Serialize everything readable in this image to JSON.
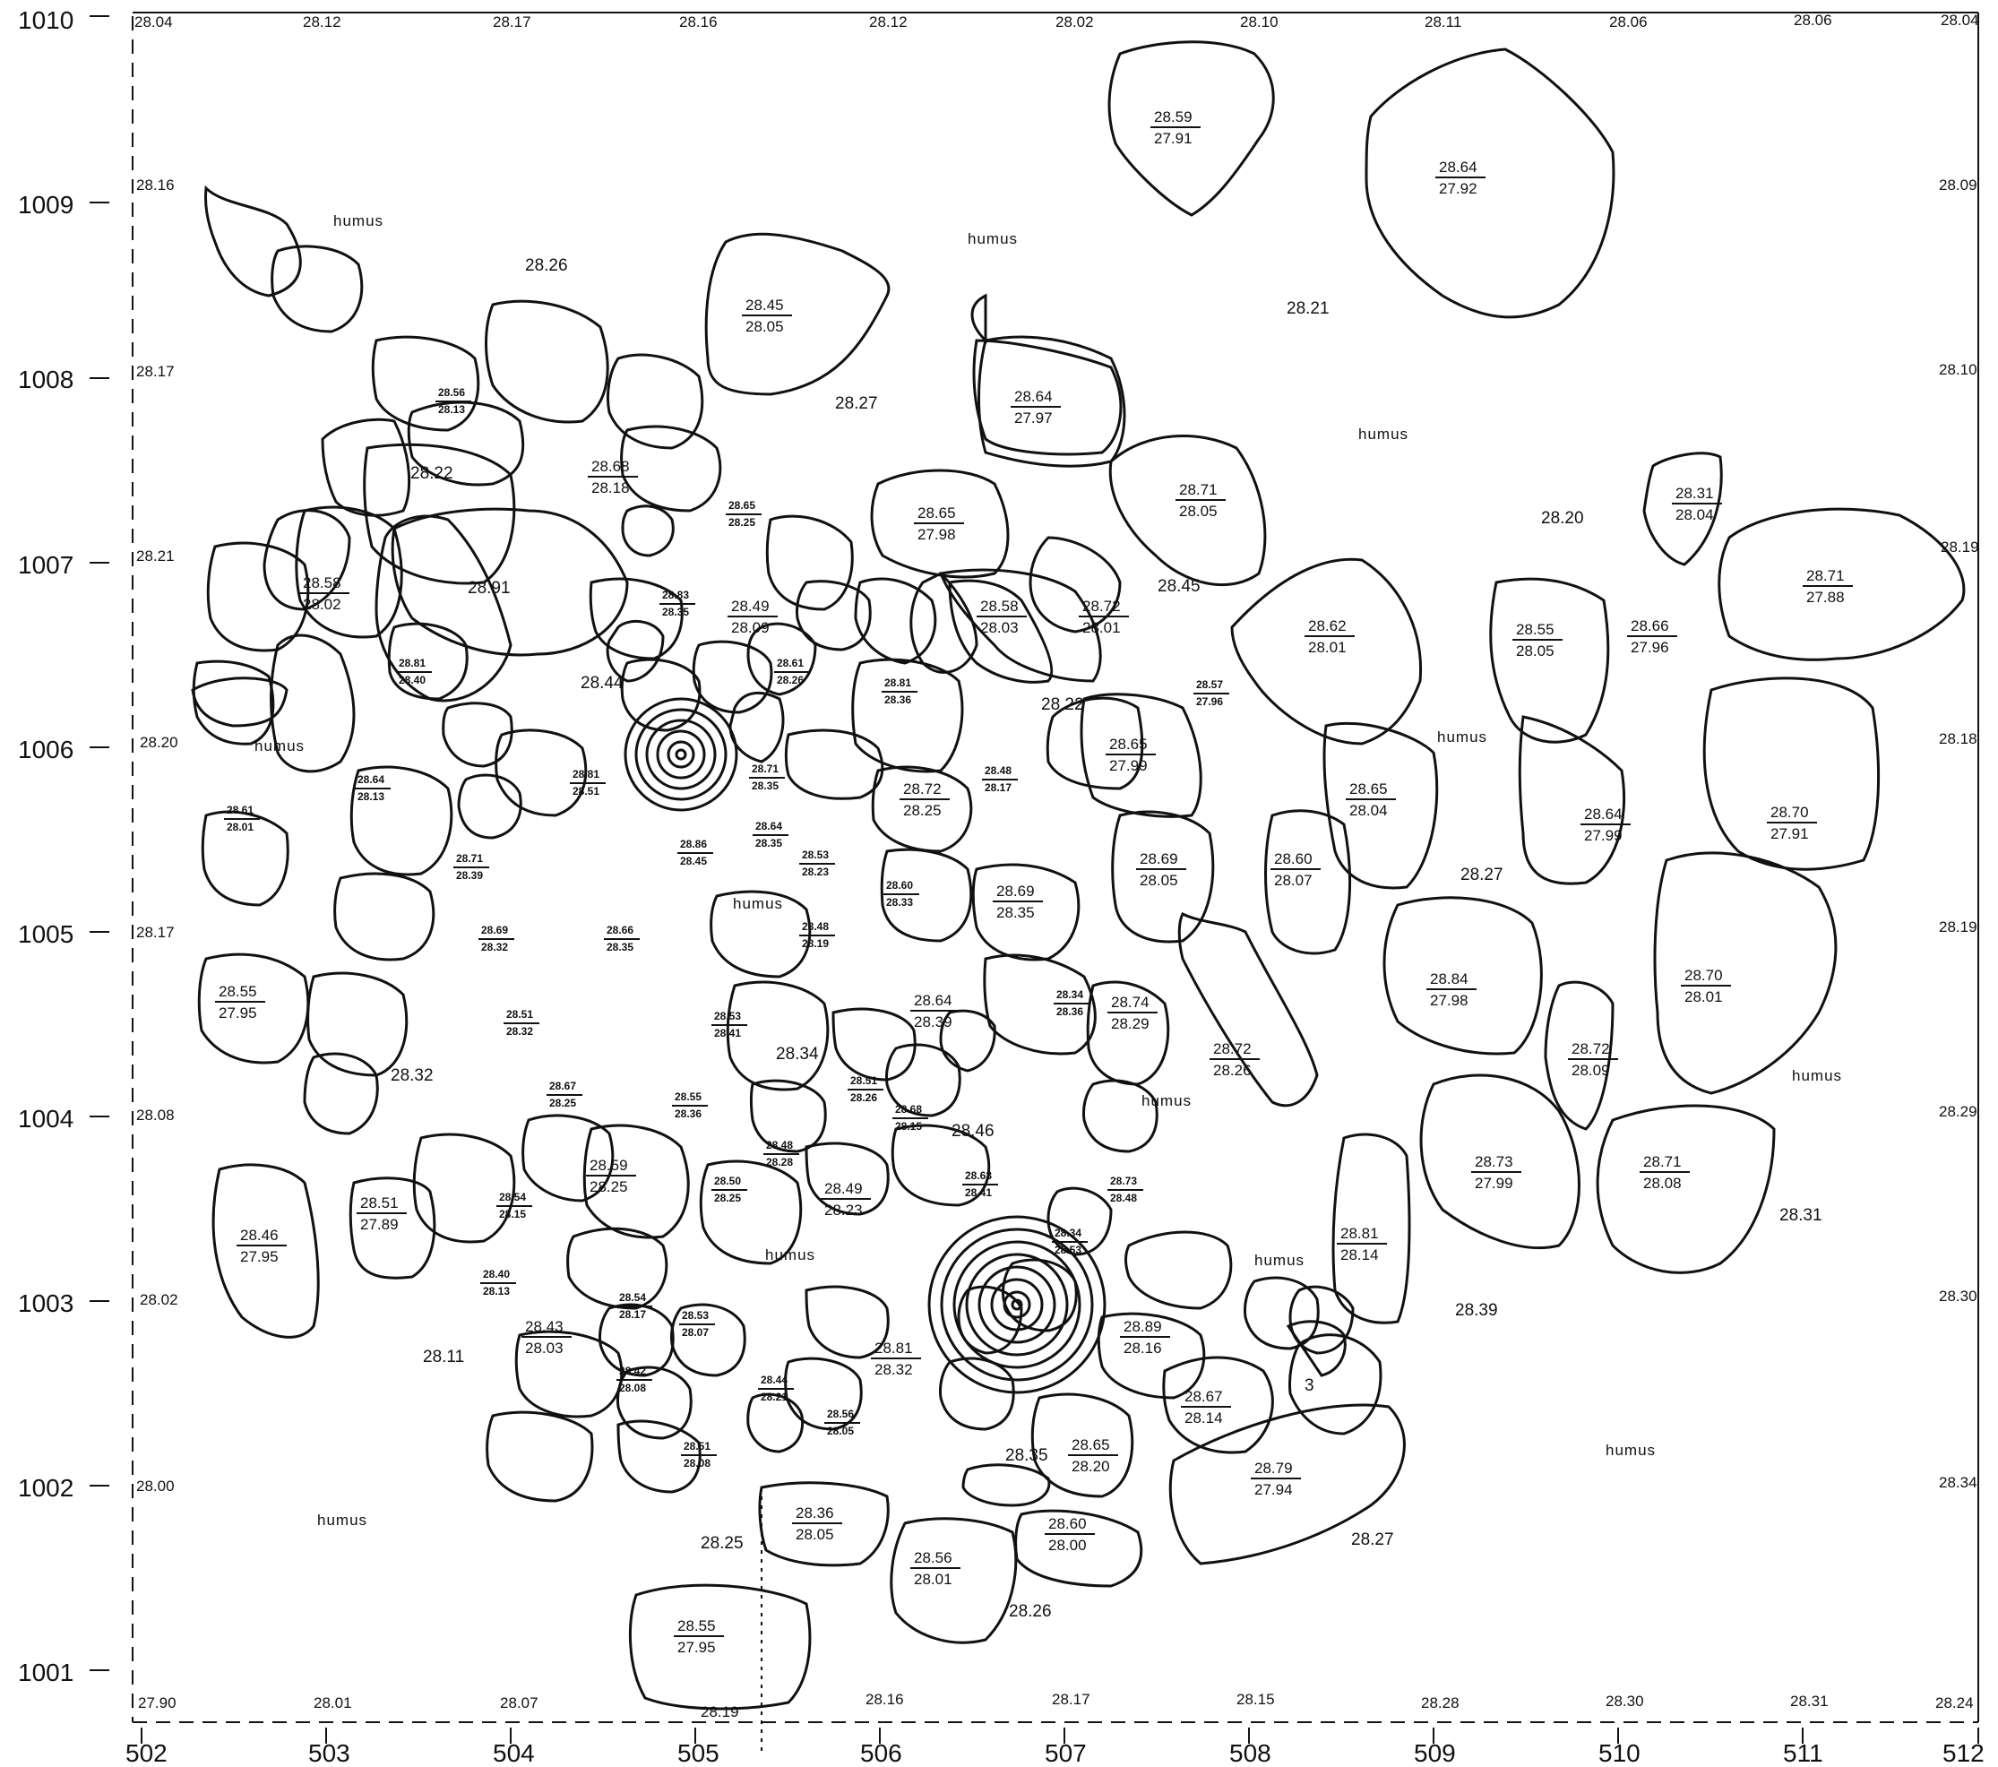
{
  "y_axis_labels": [
    "1010",
    "1009",
    "1008",
    "1007",
    "1006",
    "1005",
    "1004",
    "1003",
    "1002",
    "1001"
  ],
  "x_axis_labels": [
    "502",
    "503",
    "504",
    "505",
    "506",
    "507",
    "508",
    "509",
    "510",
    "511",
    "512"
  ],
  "top_edge_elevations": [
    "28.04",
    "28.12",
    "28.17",
    "28.16",
    "28.12",
    "28.02",
    "28.10",
    "28.11",
    "28.06",
    "28.06",
    "28.04"
  ],
  "bottom_edge_elevations": [
    "27.90",
    "28.01",
    "28.07",
    "28.19",
    "28.16",
    "28.17",
    "28.15",
    "28.28",
    "28.30",
    "28.31",
    "28.24"
  ],
  "left_edge_elevations": [
    "28.16",
    "28.17",
    "28.21",
    "28.20",
    "28.17",
    "28.08",
    "28.02",
    "28.00"
  ],
  "right_edge_elevations": [
    "28.09",
    "28.10",
    "28.19",
    "28.18",
    "28.19",
    "28.29",
    "28.30",
    "28.34"
  ],
  "humus_label": "humus",
  "ground_elevations": [
    "28.26",
    "28.27",
    "28.21",
    "28.22",
    "28.91",
    "28.44",
    "28.22",
    "28.45",
    "28.20",
    "28.27",
    "28.34",
    "28.32",
    "28.46",
    "28.11",
    "28.35",
    "28.25",
    "28.26",
    "28.27",
    "28.39",
    "28.31"
  ],
  "stone_labels": [
    {
      "top": "28.59",
      "bottom": "27.91"
    },
    {
      "top": "28.64",
      "bottom": "27.92"
    },
    {
      "top": "28.45",
      "bottom": "28.05"
    },
    {
      "top": "28.64",
      "bottom": "27.97"
    },
    {
      "top": "28.71",
      "bottom": "28.05"
    },
    {
      "top": "28.31",
      "bottom": "28.04"
    },
    {
      "top": "28.65",
      "bottom": "27.98"
    },
    {
      "top": "28.68",
      "bottom": "28.18"
    },
    {
      "top": "28.58",
      "bottom": "28.02"
    },
    {
      "top": "28.49",
      "bottom": "28.09"
    },
    {
      "top": "28.58",
      "bottom": "28.03"
    },
    {
      "top": "28.72",
      "bottom": "28.01"
    },
    {
      "top": "28.62",
      "bottom": "28.01"
    },
    {
      "top": "28.55",
      "bottom": "28.05"
    },
    {
      "top": "28.66",
      "bottom": "27.96"
    },
    {
      "top": "28.71",
      "bottom": "27.88"
    },
    {
      "top": "28.65",
      "bottom": "27.99"
    },
    {
      "top": "28.72",
      "bottom": "28.25"
    },
    {
      "top": "28.65",
      "bottom": "28.04"
    },
    {
      "top": "28.64",
      "bottom": "27.99"
    },
    {
      "top": "28.70",
      "bottom": "27.91"
    },
    {
      "top": "28.69",
      "bottom": "28.05"
    },
    {
      "top": "28.60",
      "bottom": "28.07"
    },
    {
      "top": "28.69",
      "bottom": "28.35"
    },
    {
      "top": "28.55",
      "bottom": "27.95"
    },
    {
      "top": "28.64",
      "bottom": "28.39"
    },
    {
      "top": "28.74",
      "bottom": "28.29"
    },
    {
      "top": "28.72",
      "bottom": "28.26"
    },
    {
      "top": "28.84",
      "bottom": "27.98"
    },
    {
      "top": "28.70",
      "bottom": "28.01"
    },
    {
      "top": "28.72",
      "bottom": "28.09"
    },
    {
      "top": "28.59",
      "bottom": "28.25"
    },
    {
      "top": "28.51",
      "bottom": "27.89"
    },
    {
      "top": "28.46",
      "bottom": "27.95"
    },
    {
      "top": "28.49",
      "bottom": "28.23"
    },
    {
      "top": "28.73",
      "bottom": "27.99"
    },
    {
      "top": "28.71",
      "bottom": "28.08"
    },
    {
      "top": "28.81",
      "bottom": "28.14"
    },
    {
      "top": "28.43",
      "bottom": "28.03"
    },
    {
      "top": "28.81",
      "bottom": "28.32"
    },
    {
      "top": "28.89",
      "bottom": "28.16"
    },
    {
      "top": "28.67",
      "bottom": "28.14"
    },
    {
      "top": "28.65",
      "bottom": "28.20"
    },
    {
      "top": "28.79",
      "bottom": "27.94"
    },
    {
      "top": "28.36",
      "bottom": "28.05"
    },
    {
      "top": "28.60",
      "bottom": "28.00"
    },
    {
      "top": "28.56",
      "bottom": "28.01"
    },
    {
      "top": "28.55",
      "bottom": "27.95"
    }
  ],
  "small_stone_labels": [
    {
      "top": "28.56",
      "bottom": "28.13"
    },
    {
      "top": "28.65",
      "bottom": "28.25"
    },
    {
      "top": "28.83",
      "bottom": "28.35"
    },
    {
      "top": "28.81",
      "bottom": "28.40"
    },
    {
      "top": "28.61",
      "bottom": "28.26"
    },
    {
      "top": "28.81",
      "bottom": "28.36"
    },
    {
      "top": "28.57",
      "bottom": "27.96"
    },
    {
      "top": "28.64",
      "bottom": "28.13"
    },
    {
      "top": "28.61",
      "bottom": "28.01"
    },
    {
      "top": "28.81",
      "bottom": "28.51"
    },
    {
      "top": "28.71",
      "bottom": "28.35"
    },
    {
      "top": "28.48",
      "bottom": "28.17"
    },
    {
      "top": "28.86",
      "bottom": "28.45"
    },
    {
      "top": "28.64",
      "bottom": "28.35"
    },
    {
      "top": "28.71",
      "bottom": "28.39"
    },
    {
      "top": "28.53",
      "bottom": "28.23"
    },
    {
      "top": "28.60",
      "bottom": "28.33"
    },
    {
      "top": "28.69",
      "bottom": "28.32"
    },
    {
      "top": "28.66",
      "bottom": "28.35"
    },
    {
      "top": "28.48",
      "bottom": "28.19"
    },
    {
      "top": "28.51",
      "bottom": "28.32"
    },
    {
      "top": "28.53",
      "bottom": "28.41"
    },
    {
      "top": "28.34",
      "bottom": "28.36"
    },
    {
      "top": "28.67",
      "bottom": "28.25"
    },
    {
      "top": "28.51",
      "bottom": "28.26"
    },
    {
      "top": "28.55",
      "bottom": "28.36"
    },
    {
      "top": "28.68",
      "bottom": "28.15"
    },
    {
      "top": "28.48",
      "bottom": "28.28"
    },
    {
      "top": "28.54",
      "bottom": "28.15"
    },
    {
      "top": "28.50",
      "bottom": "28.25"
    },
    {
      "top": "28.63",
      "bottom": "28.41"
    },
    {
      "top": "28.73",
      "bottom": "28.48"
    },
    {
      "top": "28.34",
      "bottom": "28.53"
    },
    {
      "top": "28.40",
      "bottom": "28.13"
    },
    {
      "top": "28.54",
      "bottom": "28.17"
    },
    {
      "top": "28.53",
      "bottom": "28.07"
    },
    {
      "top": "28.42",
      "bottom": "28.08"
    },
    {
      "top": "28.44",
      "bottom": "28.21"
    },
    {
      "top": "28.56",
      "bottom": "28.05"
    },
    {
      "top": "28.51",
      "bottom": "28.08"
    }
  ],
  "stone_number": "3"
}
